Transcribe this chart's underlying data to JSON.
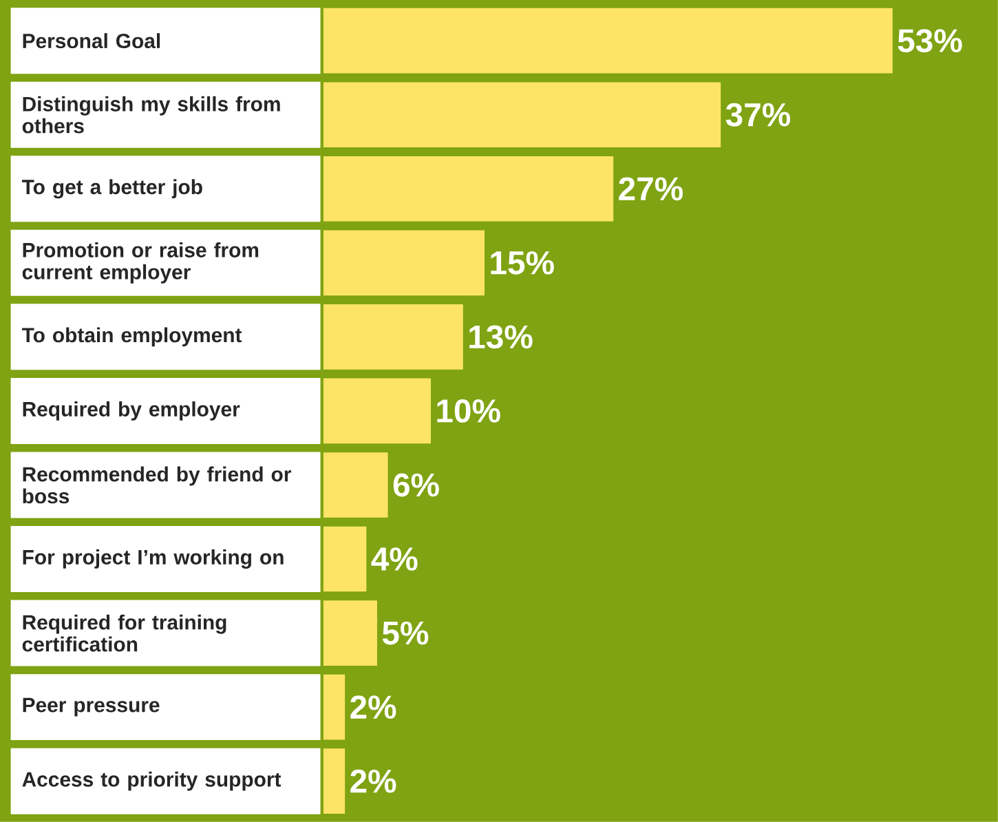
{
  "chart_data": {
    "type": "bar",
    "orientation": "horizontal",
    "categories": [
      "Personal Goal",
      "Distinguish my skills from others",
      "To get a better job",
      "Promotion or raise from current employer",
      "To obtain employment",
      "Required by employer",
      "Recommended by friend or boss",
      "For project I’m working on",
      "Required for training certification",
      "Peer pressure",
      "Access to priority support"
    ],
    "values": [
      53,
      37,
      27,
      15,
      13,
      10,
      6,
      4,
      5,
      2,
      2
    ],
    "value_labels": [
      "53%",
      "37%",
      "27%",
      "15%",
      "13%",
      "10%",
      "6%",
      "4%",
      "5%",
      "2%",
      "2%"
    ],
    "color": "#fde469"
  }
}
